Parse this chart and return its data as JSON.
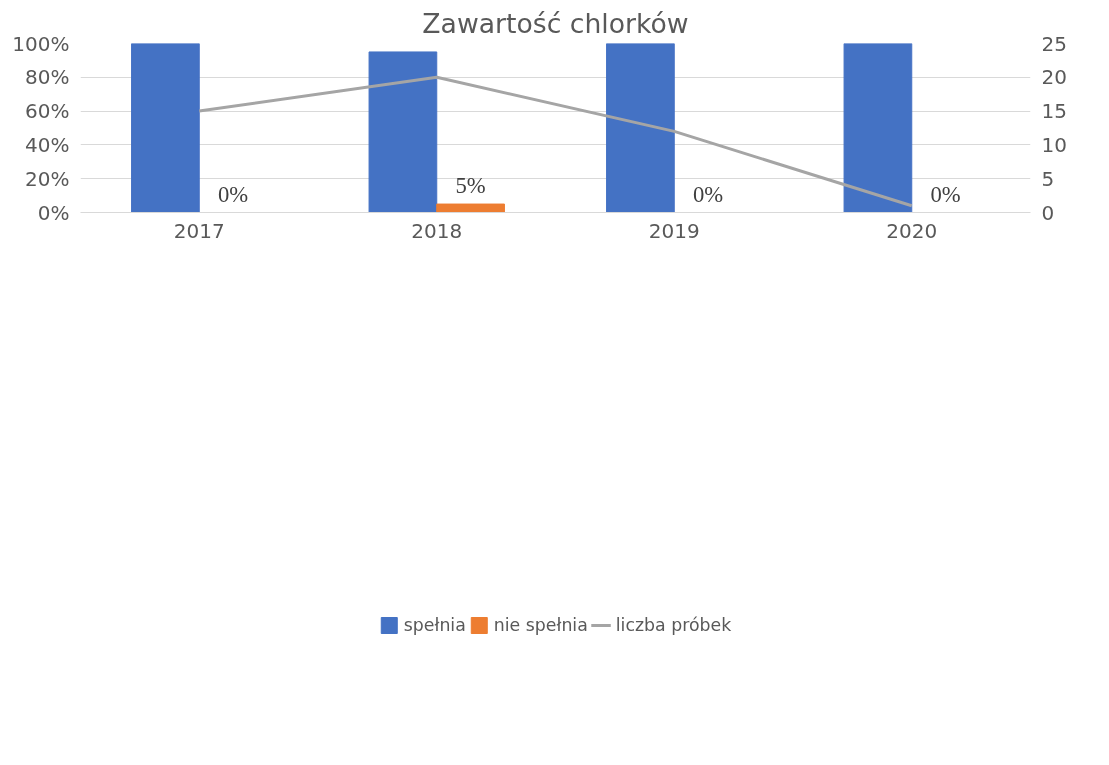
{
  "chart_data": {
    "type": "bar",
    "title": "Zawartość chlorków",
    "categories": [
      "2017",
      "2018",
      "2019",
      "2020"
    ],
    "series": [
      {
        "name": "spełnia",
        "color": "#4472c4",
        "values": [
          100,
          95,
          100,
          100
        ]
      },
      {
        "name": "nie spełnia",
        "color": "#ed7d31",
        "values": [
          0,
          5,
          0,
          0
        ],
        "value_labels": [
          "0%",
          "5%",
          "0%",
          "0%"
        ]
      },
      {
        "name": "liczba próbek",
        "type": "line",
        "axis": "y2",
        "color": "#a5a5a5",
        "values": [
          15,
          20,
          12,
          1
        ]
      }
    ],
    "ylim": [
      0,
      100
    ],
    "yticks": [
      {
        "value": 0,
        "label": "0%"
      },
      {
        "value": 20,
        "label": "20%"
      },
      {
        "value": 40,
        "label": "40%"
      },
      {
        "value": 60,
        "label": "60%"
      },
      {
        "value": 80,
        "label": "80%"
      },
      {
        "value": 100,
        "label": "100%"
      }
    ],
    "y2lim": [
      0,
      25
    ],
    "y2ticks": [
      0,
      5,
      10,
      15,
      20,
      25
    ],
    "grid": "y",
    "legend": "bottom"
  }
}
